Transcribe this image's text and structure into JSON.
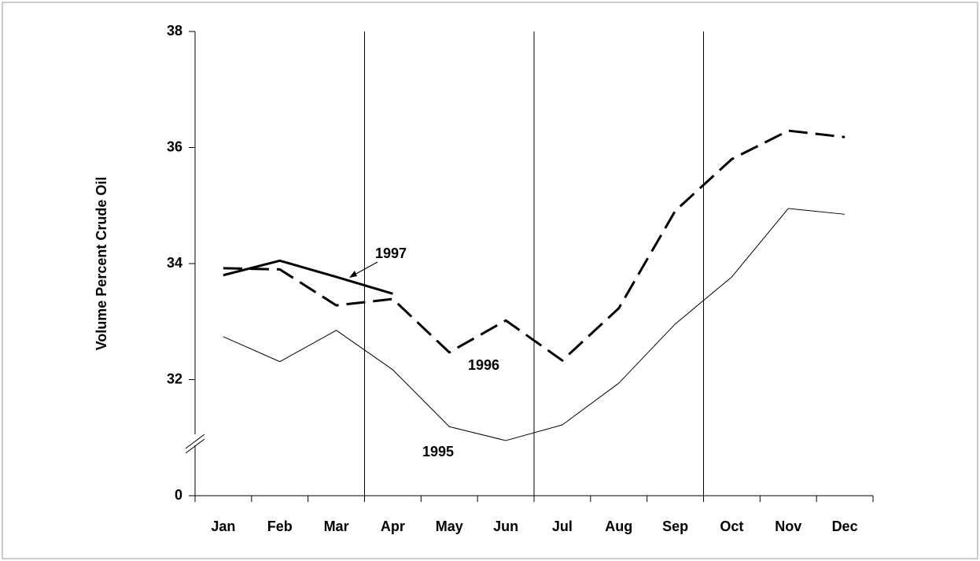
{
  "chart_data": {
    "type": "line",
    "y_label": "Volume Percent Crude Oil",
    "categories": [
      "Jan",
      "Feb",
      "Mar",
      "Apr",
      "May",
      "Jun",
      "Jul",
      "Aug",
      "Sep",
      "Oct",
      "Nov",
      "Dec"
    ],
    "series": [
      {
        "name": "1995",
        "color": "#000000",
        "line_style": "solid",
        "line_width": 1,
        "values": [
          32.74,
          32.31,
          32.85,
          32.17,
          31.19,
          30.95,
          31.22,
          31.94,
          32.96,
          33.77,
          34.95,
          34.85
        ]
      },
      {
        "name": "1996",
        "color": "#000000",
        "line_style": "dashed",
        "line_width": 3,
        "values": [
          33.92,
          33.9,
          33.28,
          33.39,
          32.47,
          33.02,
          32.33,
          33.23,
          34.91,
          35.8,
          36.29,
          36.18
        ]
      },
      {
        "name": "1997",
        "color": "#000000",
        "line_style": "solid",
        "line_width": 3,
        "values": [
          33.8,
          34.05,
          33.77,
          33.48,
          null,
          null,
          null,
          null,
          null,
          null,
          null,
          null
        ]
      }
    ],
    "ylim": [
      0,
      38
    ],
    "ybreak": [
      0,
      30
    ],
    "yticks": [
      0,
      32,
      34,
      36,
      38
    ],
    "x_grid_every": 3
  }
}
